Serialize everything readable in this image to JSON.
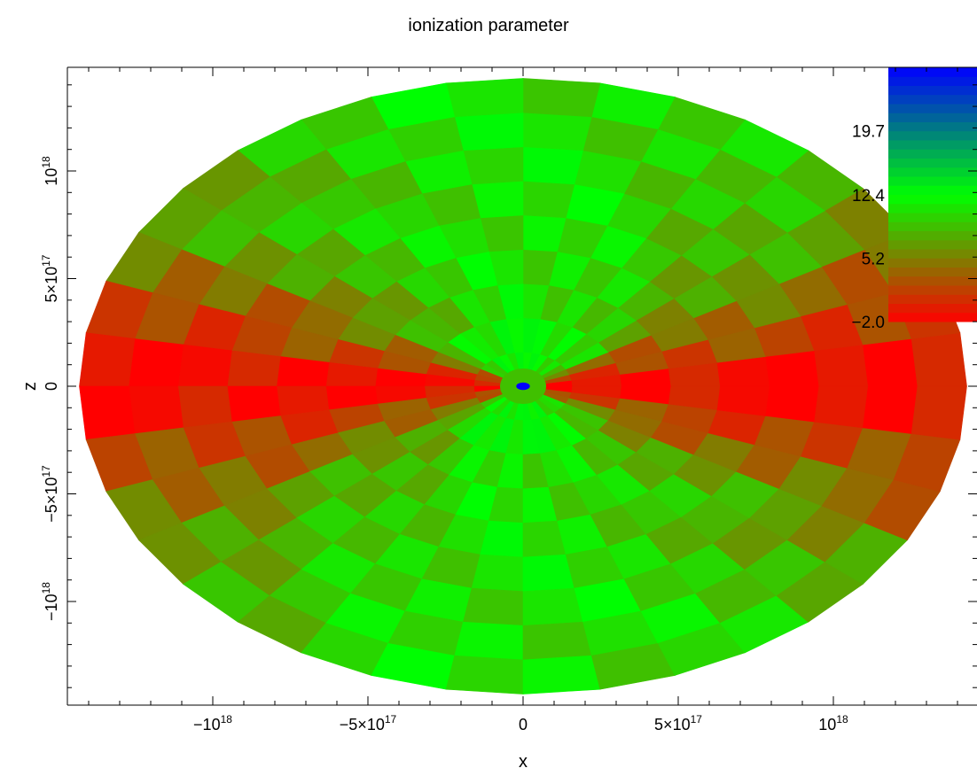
{
  "chart_data": {
    "type": "heatmap",
    "title": "ionization parameter",
    "xlabel": "x",
    "ylabel": "z",
    "xlim": [
      -1.45e+18,
      1.45e+18
    ],
    "ylim": [
      -1.45e+18,
      1.45e+18
    ],
    "x_ticks": [
      {
        "value": -1e+18,
        "mant": "−10",
        "exp": "18"
      },
      {
        "value": -5e+17,
        "mant": "−5×10",
        "exp": "17"
      },
      {
        "value": 0,
        "mant": "0",
        "exp": ""
      },
      {
        "value": 5e+17,
        "mant": "5×10",
        "exp": "17"
      },
      {
        "value": 1e+18,
        "mant": "10",
        "exp": "18"
      }
    ],
    "y_ticks": [
      {
        "value": 1e+18,
        "mant": "10",
        "exp": "18"
      },
      {
        "value": 5e+17,
        "mant": "5×10",
        "exp": "17"
      },
      {
        "value": 0,
        "mant": "0",
        "exp": ""
      },
      {
        "value": -5e+17,
        "mant": "−5×10",
        "exp": "17"
      },
      {
        "value": -1e+18,
        "mant": "−10",
        "exp": "18"
      }
    ],
    "grid": false,
    "colorbar": {
      "position": "top-right",
      "range": [
        -2.0,
        26.9
      ],
      "ticks": [
        {
          "value": 19.7,
          "label": "19.7"
        },
        {
          "value": 12.4,
          "label": "12.4"
        },
        {
          "value": 5.2,
          "label": "5.2"
        },
        {
          "value": -2.0,
          "label": "−2.0"
        }
      ],
      "stops": [
        {
          "value": -2.0,
          "color": "#ff0000"
        },
        {
          "value": 5.2,
          "color": "#7f7f00"
        },
        {
          "value": 12.4,
          "color": "#00ff00"
        },
        {
          "value": 19.7,
          "color": "#007f7f"
        },
        {
          "value": 26.9,
          "color": "#0000ff"
        }
      ]
    },
    "field": {
      "outer_radius": 1.43e+18,
      "core_radius": 5.5e+16,
      "core_value": 27.0,
      "equator_value": -2.0,
      "pole_value": 11.0,
      "mid_value": 6.0
    }
  }
}
